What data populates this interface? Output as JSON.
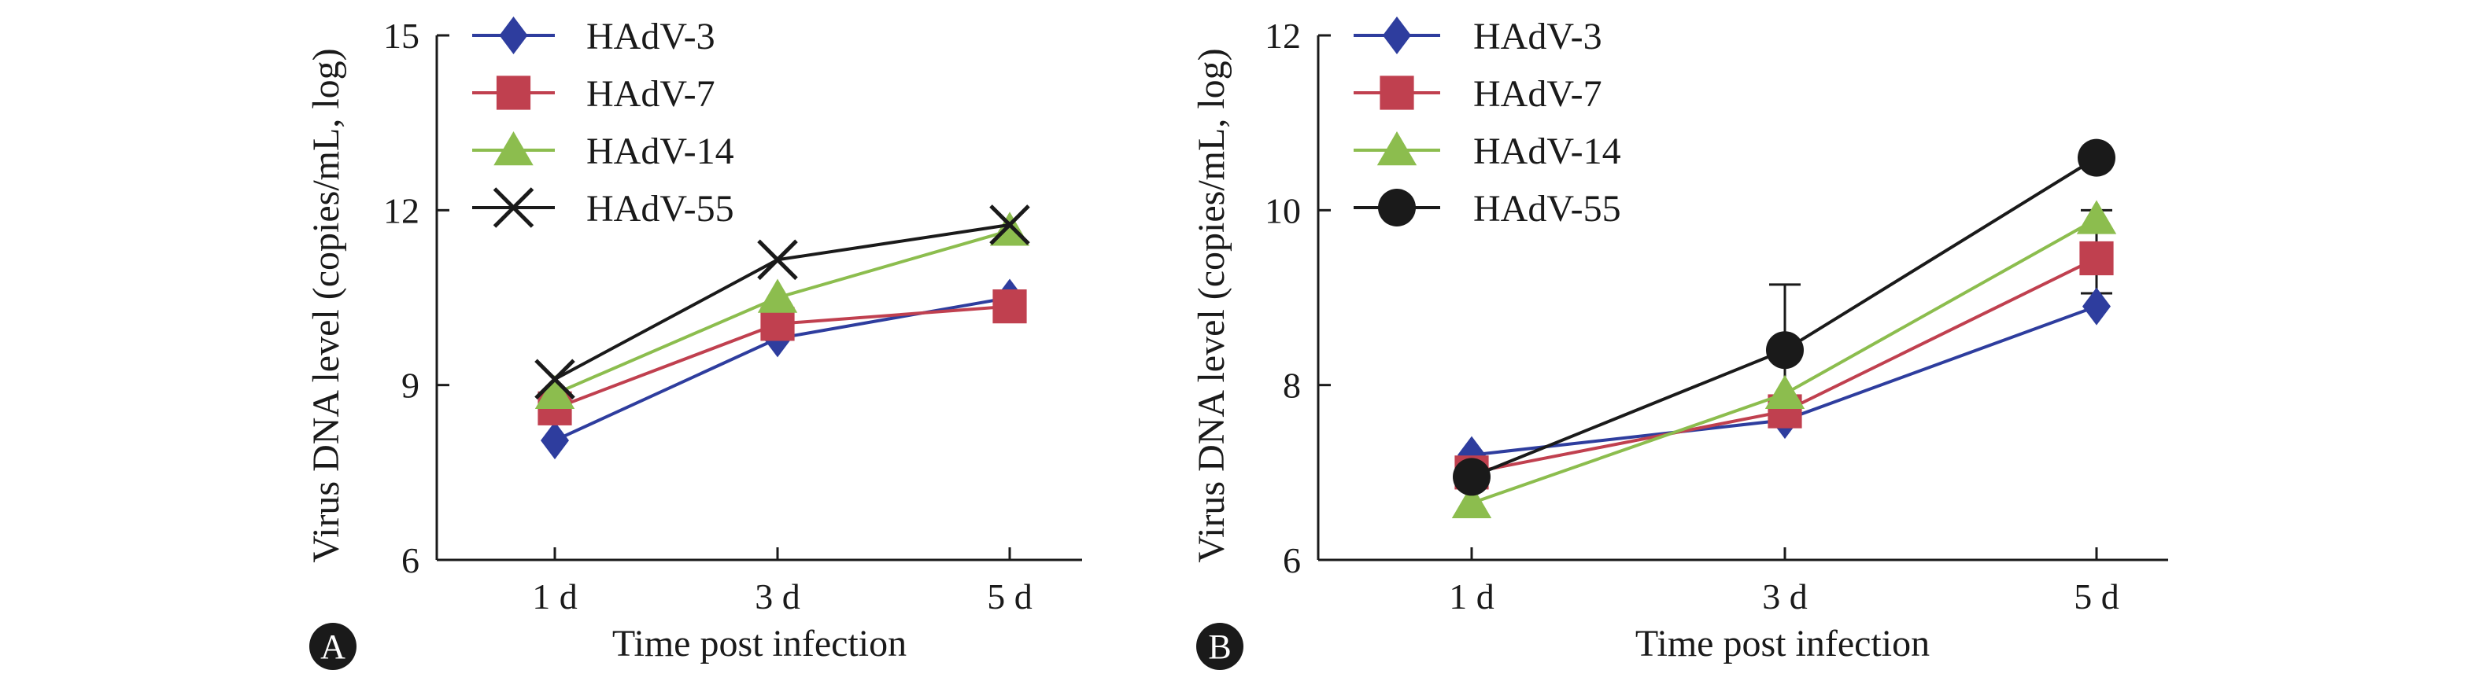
{
  "chart_data": [
    {
      "panel": "A",
      "type": "line",
      "xlabel": "Time post infection",
      "ylabel": "Virus DNA level (copies/mL, log)",
      "categories": [
        "1 d",
        "3 d",
        "5 d"
      ],
      "ylim": [
        6,
        15
      ],
      "yticks": [
        6,
        9,
        12,
        15
      ],
      "legend_position": "top-left",
      "grid": false,
      "series": [
        {
          "name": "HAdV-3",
          "values": [
            8.05,
            9.8,
            10.5
          ],
          "color": "#2e3d9e",
          "marker": "diamond"
        },
        {
          "name": "HAdV-7",
          "values": [
            8.6,
            10.05,
            10.35
          ],
          "color": "#c0404f",
          "marker": "square"
        },
        {
          "name": "HAdV-14",
          "values": [
            8.85,
            10.5,
            11.65
          ],
          "color": "#8cbd4e",
          "marker": "triangle"
        },
        {
          "name": "HAdV-55",
          "values": [
            9.1,
            11.15,
            11.75
          ],
          "color": "#1a1a1a",
          "marker": "cross"
        }
      ]
    },
    {
      "panel": "B",
      "type": "line",
      "xlabel": "Time post infection",
      "ylabel": "Virus DNA level (copies/mL, log)",
      "categories": [
        "1 d",
        "3 d",
        "5 d"
      ],
      "ylim": [
        6,
        12
      ],
      "yticks": [
        6,
        8,
        10,
        12
      ],
      "legend_position": "top-left",
      "grid": false,
      "series": [
        {
          "name": "HAdV-3",
          "values": [
            7.2,
            7.6,
            8.9
          ],
          "color": "#2e3d9e",
          "marker": "diamond"
        },
        {
          "name": "HAdV-7",
          "values": [
            7.0,
            7.7,
            9.45
          ],
          "color": "#c0404f",
          "marker": "square"
        },
        {
          "name": "HAdV-14",
          "values": [
            6.65,
            7.9,
            9.9
          ],
          "color": "#8cbd4e",
          "marker": "triangle"
        },
        {
          "name": "HAdV-55",
          "values": [
            6.95,
            8.4,
            10.6
          ],
          "color": "#1a1a1a",
          "marker": "circle",
          "error": [
            null,
            0.75,
            null
          ]
        }
      ],
      "error_bars": [
        {
          "category": "5 d",
          "low": 9.05,
          "high": 10.0,
          "color": "#1a1a1a"
        }
      ]
    }
  ]
}
